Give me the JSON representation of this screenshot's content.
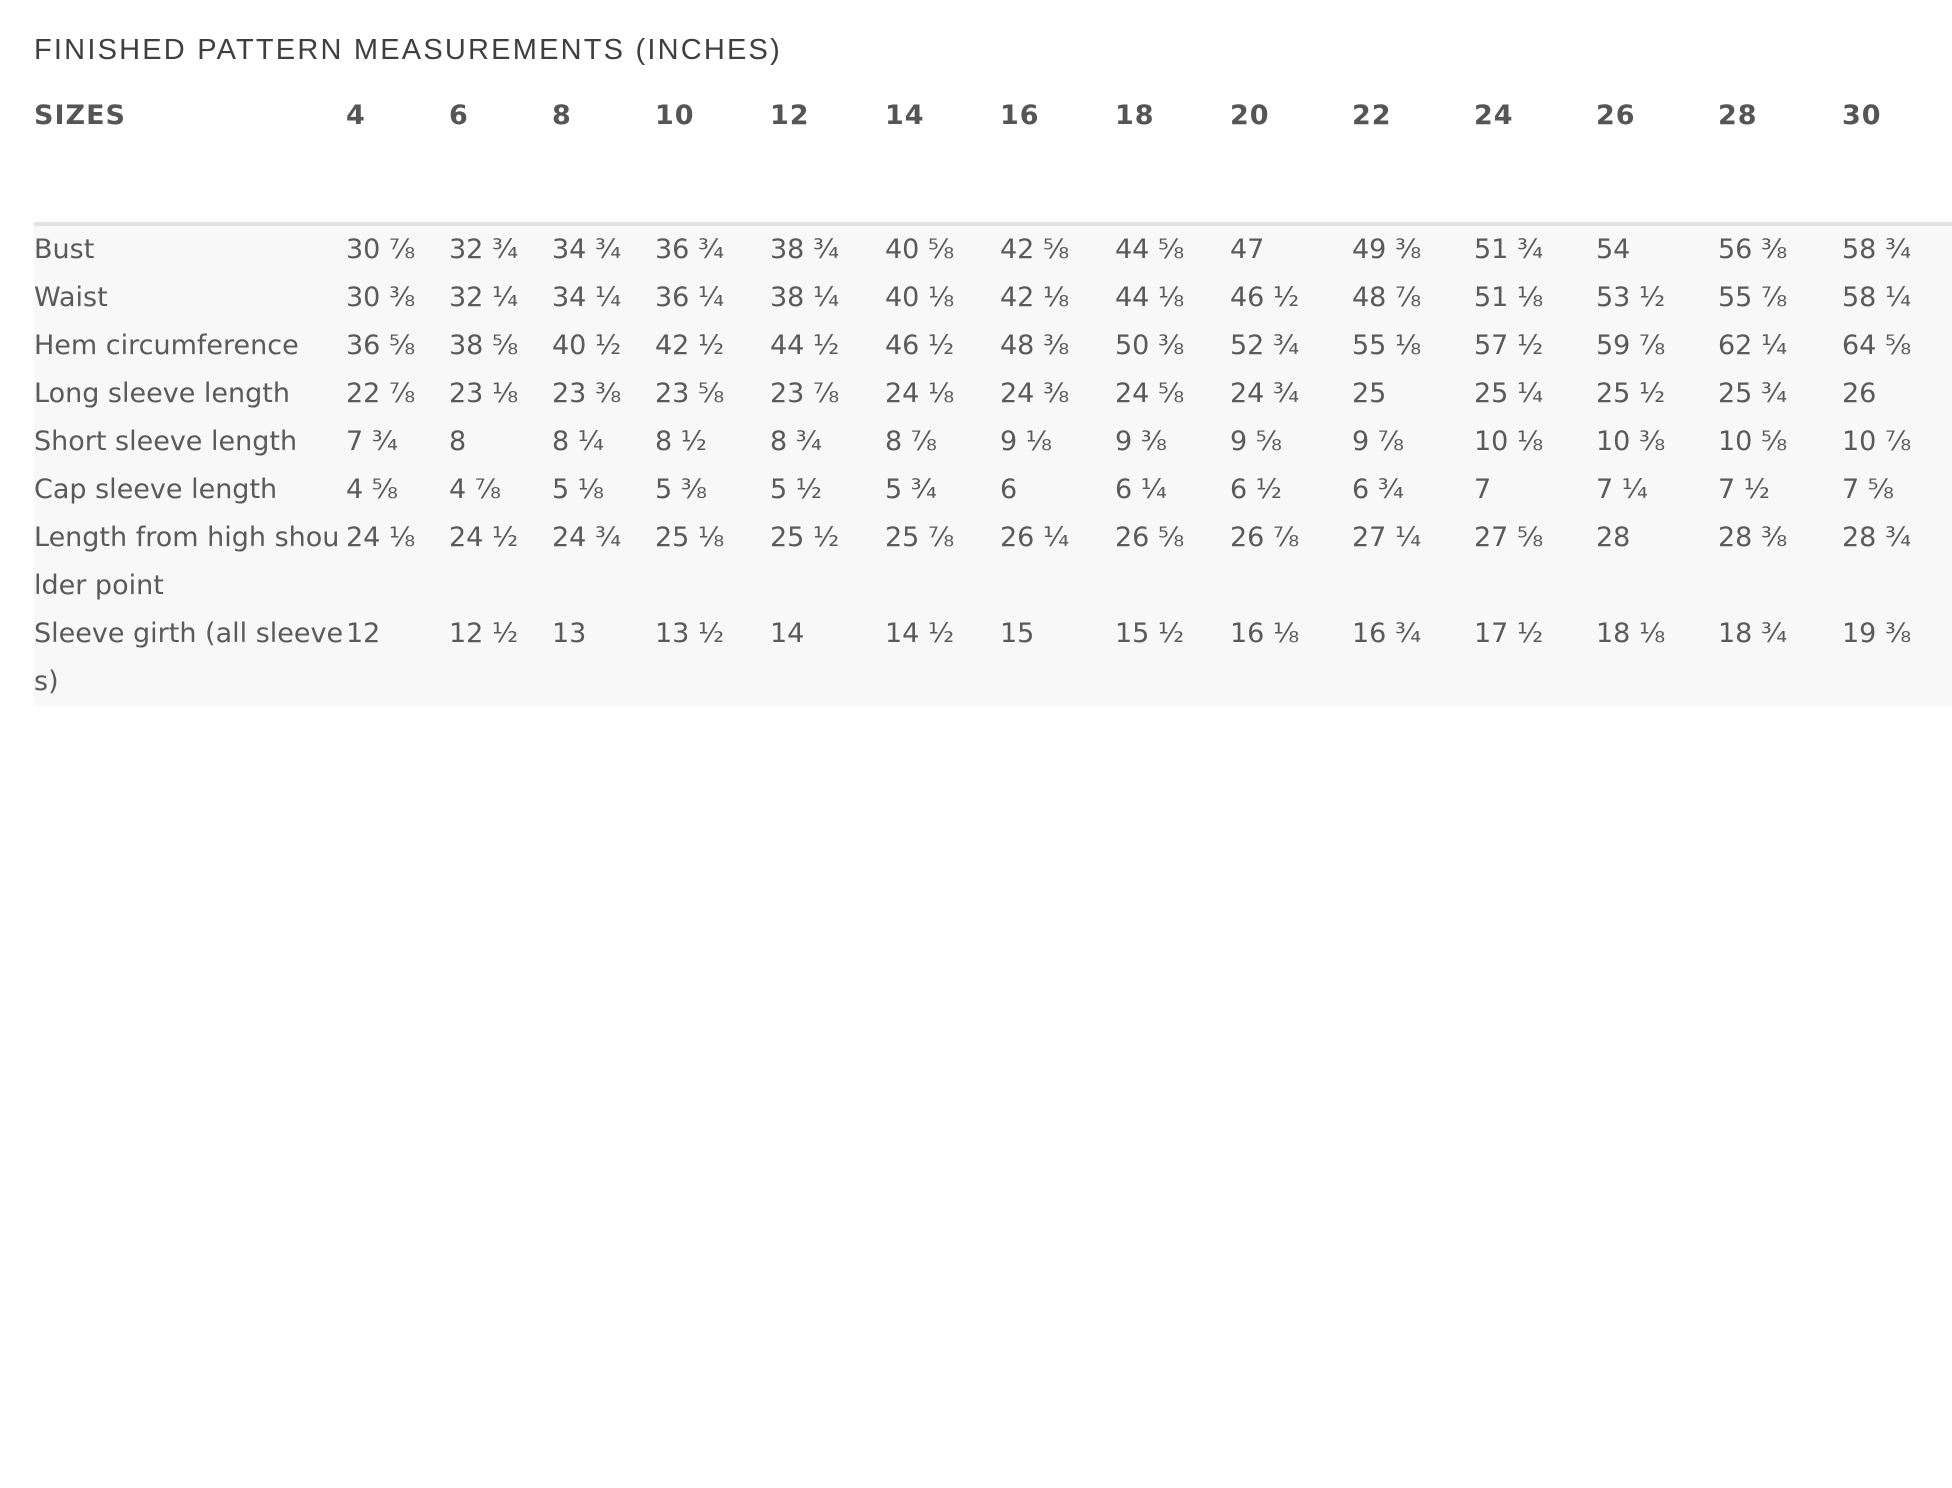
{
  "title": "FINISHED PATTERN MEASUREMENTS (INCHES)",
  "table": {
    "corner_label": "SIZES",
    "sizes": [
      "4",
      "6",
      "8",
      "10",
      "12",
      "14",
      "16",
      "18",
      "20",
      "22",
      "24",
      "26",
      "28",
      "30"
    ],
    "rows": [
      {
        "label": "Bust",
        "values": [
          "30 ⅞",
          "32 ¾",
          "34 ¾",
          "36 ¾",
          "38 ¾",
          "40 ⅝",
          "42 ⅝",
          "44 ⅝",
          "47",
          "49 ⅜",
          "51 ¾",
          "54",
          "56 ⅜",
          "58 ¾"
        ]
      },
      {
        "label": "Waist",
        "values": [
          "30 ⅜",
          "32 ¼",
          "34 ¼",
          "36 ¼",
          "38 ¼",
          "40 ⅛",
          "42 ⅛",
          "44 ⅛",
          "46 ½",
          "48 ⅞",
          "51 ⅛",
          "53 ½",
          "55 ⅞",
          "58 ¼"
        ]
      },
      {
        "label": "Hem circumference",
        "values": [
          "36 ⅝",
          "38 ⅝",
          "40 ½",
          "42 ½",
          "44 ½",
          "46 ½",
          "48 ⅜",
          "50 ⅜",
          "52 ¾",
          "55 ⅛",
          "57 ½",
          "59 ⅞",
          "62 ¼",
          "64 ⅝"
        ]
      },
      {
        "label": "Long sleeve length",
        "values": [
          "22 ⅞",
          "23 ⅛",
          "23 ⅜",
          "23 ⅝",
          "23 ⅞",
          "24 ⅛",
          "24 ⅜",
          "24 ⅝",
          "24 ¾",
          "25",
          "25 ¼",
          "25 ½",
          "25 ¾",
          "26"
        ]
      },
      {
        "label": "Short sleeve length",
        "values": [
          "7 ¾",
          "8",
          "8 ¼",
          "8 ½",
          "8 ¾",
          "8 ⅞",
          "9 ⅛",
          "9 ⅜",
          "9 ⅝",
          "9 ⅞",
          "10 ⅛",
          "10 ⅜",
          "10 ⅝",
          "10 ⅞"
        ]
      },
      {
        "label": "Cap sleeve length",
        "values": [
          "4 ⅝",
          "4 ⅞",
          "5 ⅛",
          "5 ⅜",
          "5 ½",
          "5 ¾",
          "6",
          "6 ¼",
          "6 ½",
          "6 ¾",
          "7",
          "7 ¼",
          "7 ½",
          "7 ⅝"
        ]
      },
      {
        "label": "Length from high shoulder point",
        "values": [
          "24 ⅛",
          "24 ½",
          "24 ¾",
          "25 ⅛",
          "25 ½",
          "25 ⅞",
          "26 ¼",
          "26 ⅝",
          "26 ⅞",
          "27 ¼",
          "27 ⅝",
          "28",
          "28 ⅜",
          "28 ¾"
        ]
      },
      {
        "label": "Sleeve girth (all sleeves)",
        "values": [
          "12",
          "12 ½",
          "13",
          "13 ½",
          "14",
          "14 ½",
          "15",
          "15 ½",
          "16 ⅛",
          "16 ¾",
          "17 ½",
          "18 ⅛",
          "18 ¾",
          "19 ⅜"
        ]
      }
    ]
  }
}
